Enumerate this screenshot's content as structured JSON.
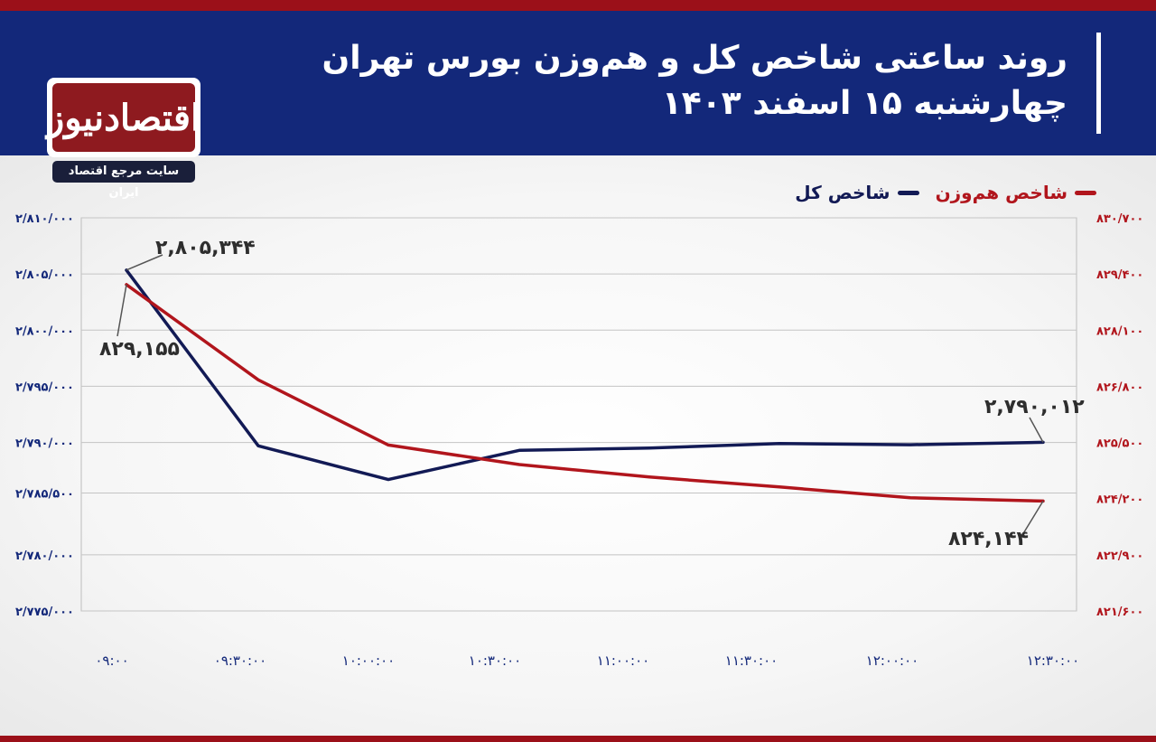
{
  "header": {
    "title_line1": "روند ساعتی شاخص کل و هم‌وزن بورس تهران",
    "title_line2": "چهارشنبه ۱۵ اسفند ۱۴۰۳"
  },
  "logo": {
    "name": "اقتصادنیوز",
    "tagline": "سایت مرجع اقتصاد ایران"
  },
  "colors": {
    "header_bg": "#13287a",
    "accent_red": "#9b1019",
    "total_index": "#121a55",
    "equal_weight_index": "#b1151c"
  },
  "chart_data": {
    "type": "line",
    "categories": [
      "۰۹:۰۰",
      "۰۹:۳۰:۰۰",
      "۱۰:۰۰:۰۰",
      "۱۰:۳۰:۰۰",
      "۱۱:۰۰:۰۰",
      "۱۱:۳۰:۰۰",
      "۱۲:۰۰:۰۰",
      "۱۲:۳۰:۰۰"
    ],
    "left_axis": {
      "ylim": [
        2775000,
        2810000
      ],
      "ticks": [
        2810000,
        2805000,
        2800000,
        2795000,
        2790000,
        2785500,
        2780000,
        2775000
      ],
      "tick_labels": [
        "۲/۸۱۰/۰۰۰",
        "۲/۸۰۵/۰۰۰",
        "۲/۸۰۰/۰۰۰",
        "۲/۷۹۵/۰۰۰",
        "۲/۷۹۰/۰۰۰",
        "۲/۷۸۵/۵۰۰",
        "۲/۷۸۰/۰۰۰",
        "۲/۷۷۵/۰۰۰"
      ]
    },
    "right_axis": {
      "ylim": [
        821600,
        830700
      ],
      "ticks": [
        830700,
        829400,
        828100,
        826800,
        825500,
        824200,
        822900,
        821600
      ],
      "tick_labels": [
        "۸۳۰/۷۰۰",
        "۸۲۹/۴۰۰",
        "۸۲۸/۱۰۰",
        "۸۲۶/۸۰۰",
        "۸۲۵/۵۰۰",
        "۸۲۴/۲۰۰",
        "۸۲۲/۹۰۰",
        "۸۲۱/۶۰۰"
      ]
    },
    "series": [
      {
        "name": "شاخص کل",
        "axis": "left",
        "color": "#121a55",
        "values": [
          2805344,
          2789700,
          2786700,
          2789300,
          2789500,
          2789900,
          2789800,
          2790012
        ]
      },
      {
        "name": "شاخص هم‌وزن",
        "axis": "right",
        "color": "#b1151c",
        "values": [
          829155,
          826950,
          825440,
          824990,
          824700,
          824470,
          824220,
          824144
        ]
      }
    ],
    "annotations": [
      {
        "series": 0,
        "point": 0,
        "text": "۲,۸۰۵,۳۴۴"
      },
      {
        "series": 1,
        "point": 0,
        "text": "۸۲۹,۱۵۵"
      },
      {
        "series": 0,
        "point": 7,
        "text": "۲,۷۹۰,۰۱۲"
      },
      {
        "series": 1,
        "point": 7,
        "text": "۸۲۴,۱۴۴"
      }
    ],
    "grid": true,
    "legend_placement": "top-right"
  }
}
